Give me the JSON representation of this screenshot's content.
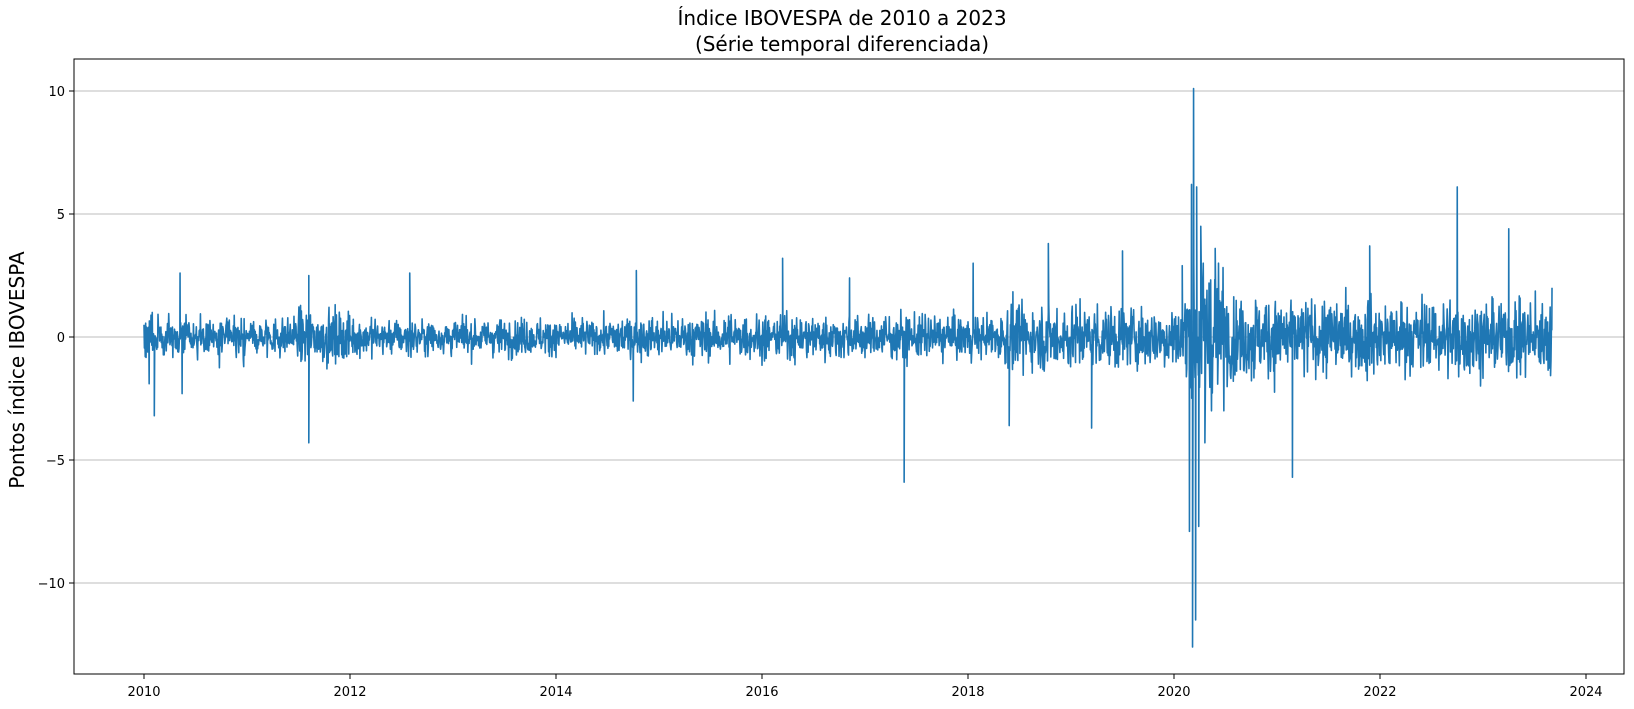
{
  "chart_data": {
    "type": "line",
    "title": "Índice IBOVESPA de 2010 a 2023",
    "subtitle": "(Série temporal diferenciada)",
    "xlabel": "",
    "ylabel": "Pontos índice IBOVESPA",
    "xlim": [
      2009.33,
      2024.33
    ],
    "ylim": [
      -13.1,
      11.3
    ],
    "x_ticks": [
      2010,
      2012,
      2014,
      2016,
      2018,
      2020,
      2022,
      2024
    ],
    "x_tick_labels": [
      "2010",
      "2012",
      "2014",
      "2016",
      "2018",
      "2020",
      "2022",
      "2024"
    ],
    "y_ticks": [
      10,
      5,
      0,
      -5,
      -10
    ],
    "y_tick_labels": [
      "10",
      "5",
      "0",
      "−5",
      "−10"
    ],
    "grid": "horizontal",
    "series": [
      {
        "color": "#1f77b4",
        "x_start": 2010.0,
        "x_end": 2023.67,
        "points": [
          {
            "x": 2010.0,
            "y": 0.5
          },
          {
            "x": 2010.05,
            "y": -1.9
          },
          {
            "x": 2010.1,
            "y": -3.2
          },
          {
            "x": 2010.35,
            "y": 2.6
          },
          {
            "x": 2010.37,
            "y": -2.3
          },
          {
            "x": 2011.6,
            "y": 2.5
          },
          {
            "x": 2011.6,
            "y": -4.3
          },
          {
            "x": 2012.58,
            "y": 2.6
          },
          {
            "x": 2014.78,
            "y": 2.7
          },
          {
            "x": 2014.75,
            "y": -2.6
          },
          {
            "x": 2016.2,
            "y": 3.2
          },
          {
            "x": 2016.85,
            "y": 2.4
          },
          {
            "x": 2017.38,
            "y": -5.9
          },
          {
            "x": 2018.05,
            "y": 3.0
          },
          {
            "x": 2018.4,
            "y": -3.6
          },
          {
            "x": 2018.78,
            "y": 3.8
          },
          {
            "x": 2019.2,
            "y": -3.7
          },
          {
            "x": 2019.5,
            "y": 3.5
          },
          {
            "x": 2020.08,
            "y": 2.9
          },
          {
            "x": 2020.15,
            "y": -7.9
          },
          {
            "x": 2020.17,
            "y": 6.2
          },
          {
            "x": 2020.18,
            "y": -12.6
          },
          {
            "x": 2020.19,
            "y": 10.1
          },
          {
            "x": 2020.21,
            "y": -11.5
          },
          {
            "x": 2020.22,
            "y": 6.1
          },
          {
            "x": 2020.24,
            "y": -7.7
          },
          {
            "x": 2020.26,
            "y": 4.5
          },
          {
            "x": 2020.3,
            "y": -4.3
          },
          {
            "x": 2020.4,
            "y": 3.6
          },
          {
            "x": 2021.15,
            "y": -5.7
          },
          {
            "x": 2021.9,
            "y": 3.7
          },
          {
            "x": 2022.75,
            "y": 6.1
          },
          {
            "x": 2023.25,
            "y": 4.4
          },
          {
            "x": 2023.67,
            "y": 2.0
          }
        ]
      }
    ]
  }
}
